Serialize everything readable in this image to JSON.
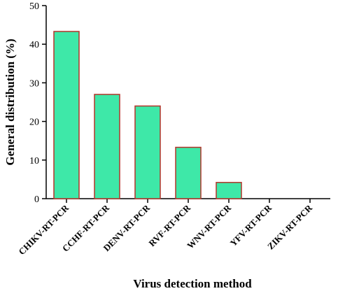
{
  "chart_data": {
    "type": "bar",
    "categories": [
      "CHIKV-RT-PCR",
      "CCHF-RT-PCR",
      "DENV-RT-PCR",
      "RVF-RT-PCR",
      "WNV-RT-PCR",
      "YFV-RT-PCR",
      "ZIKV-RT-PCR"
    ],
    "values": [
      43.3,
      27.0,
      24.0,
      13.3,
      4.2,
      0,
      0
    ],
    "title": "",
    "xlabel": "Virus detection method",
    "ylabel": "General distribution (%)",
    "ylim": [
      0,
      50
    ],
    "yticks": [
      0,
      10,
      20,
      30,
      40,
      50
    ],
    "grid": false,
    "bar_fill": "#3ee8a8",
    "bar_stroke": "#b3342a"
  }
}
